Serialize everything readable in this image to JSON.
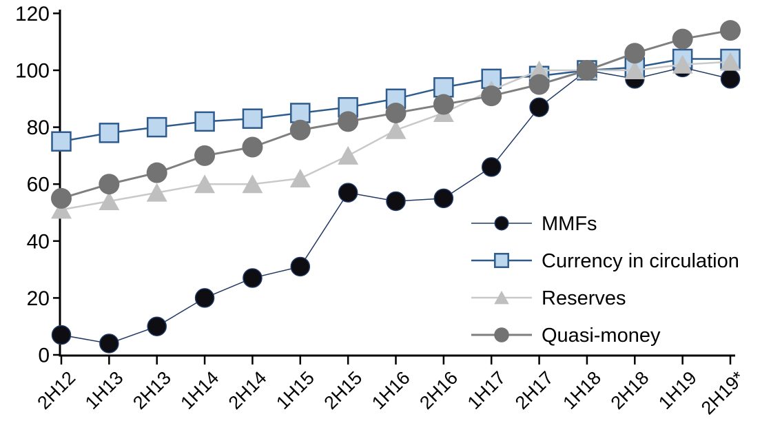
{
  "chart_data": {
    "type": "line",
    "title": "",
    "xlabel": "",
    "ylabel": "",
    "ylim": [
      0,
      120
    ],
    "ytick_step": 20,
    "yticks": [
      0,
      20,
      40,
      60,
      80,
      100,
      120
    ],
    "grid": false,
    "legend_position": "inside-right",
    "categories": [
      "2H12",
      "1H13",
      "2H13",
      "1H14",
      "2H14",
      "1H15",
      "2H15",
      "1H16",
      "2H16",
      "1H17",
      "2H17",
      "1H18",
      "2H18",
      "1H19",
      "2H19*"
    ],
    "series": [
      {
        "name": "MMFs",
        "marker": "circle",
        "line_color": "#1F3864",
        "marker_fill": "#0D0D12",
        "marker_stroke": "#1F3864",
        "values": [
          7,
          4,
          10,
          20,
          27,
          31,
          57,
          54,
          55,
          66,
          87,
          100,
          97,
          101,
          97
        ]
      },
      {
        "name": "Currency in circulation",
        "marker": "square",
        "line_color": "#2E5B8C",
        "marker_fill": "#BDD7EE",
        "marker_stroke": "#2E5B8C",
        "values": [
          75,
          78,
          80,
          82,
          83,
          85,
          87,
          90,
          94,
          97,
          98,
          100,
          101,
          104,
          104
        ]
      },
      {
        "name": "Reserves",
        "marker": "triangle",
        "line_color": "#C9C9C9",
        "marker_fill": "#BFBFBF",
        "marker_stroke": "#BFBFBF",
        "values": [
          51,
          54,
          57,
          60,
          60,
          62,
          70,
          79,
          85,
          93,
          100,
          100,
          100,
          102,
          103
        ]
      },
      {
        "name": "Quasi-money",
        "marker": "circle",
        "line_color": "#7F7F7F",
        "marker_fill": "#737373",
        "marker_stroke": "#737373",
        "values": [
          55,
          60,
          64,
          70,
          73,
          79,
          82,
          85,
          88,
          91,
          95,
          100,
          106,
          111,
          114
        ]
      }
    ],
    "axis_color": "#000000",
    "background": "#FFFFFF"
  }
}
